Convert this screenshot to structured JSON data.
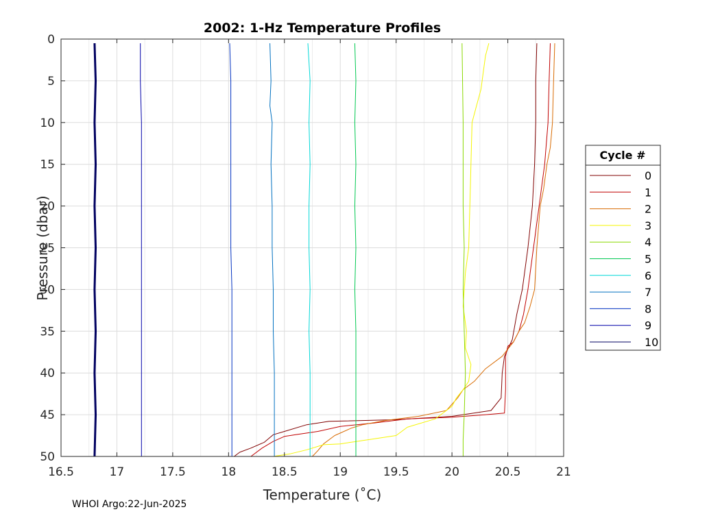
{
  "footer": "WHOI Argo:22-Jun-2025",
  "chart_data": {
    "type": "line",
    "title": "2002: 1-Hz Temperature Profiles",
    "xlabel": "Temperature (˚C)",
    "ylabel": "Pressure (dbar)",
    "xlim": [
      16.5,
      21
    ],
    "ylim": [
      0,
      50
    ],
    "y_reversed": true,
    "grid": true,
    "x_ticks": [
      16.5,
      17,
      17.5,
      18,
      18.5,
      19,
      19.5,
      20,
      20.5,
      21
    ],
    "x_tick_labels": [
      "16.5",
      "17",
      "17.5",
      "18",
      "18.5",
      "19",
      "19.5",
      "20",
      "20.5",
      "21"
    ],
    "y_ticks": [
      0,
      5,
      10,
      15,
      20,
      25,
      30,
      35,
      40,
      45,
      50
    ],
    "y_tick_labels": [
      "0",
      "5",
      "10",
      "15",
      "20",
      "25",
      "30",
      "35",
      "40",
      "45",
      "50"
    ],
    "legend": {
      "title": "Cycle #",
      "placement": "right"
    },
    "series": [
      {
        "name": "0",
        "color": "#800000",
        "points": [
          [
            20.76,
            0.5
          ],
          [
            20.75,
            5
          ],
          [
            20.75,
            10
          ],
          [
            20.74,
            15
          ],
          [
            20.72,
            20
          ],
          [
            20.68,
            25
          ],
          [
            20.63,
            30
          ],
          [
            20.58,
            33
          ],
          [
            20.54,
            36
          ],
          [
            20.47,
            38
          ],
          [
            20.45,
            40
          ],
          [
            20.44,
            43
          ],
          [
            20.35,
            44.5
          ],
          [
            20.0,
            45.2
          ],
          [
            19.5,
            45.6
          ],
          [
            18.9,
            45.8
          ],
          [
            18.7,
            46.2
          ],
          [
            18.5,
            47.0
          ],
          [
            18.4,
            47.4
          ],
          [
            18.32,
            48.3
          ],
          [
            18.2,
            49.0
          ],
          [
            18.1,
            49.5
          ],
          [
            18.05,
            50
          ]
        ]
      },
      {
        "name": "1",
        "color": "#c00000",
        "points": [
          [
            20.88,
            0.5
          ],
          [
            20.87,
            5
          ],
          [
            20.86,
            10
          ],
          [
            20.83,
            15
          ],
          [
            20.78,
            20
          ],
          [
            20.73,
            25
          ],
          [
            20.68,
            30
          ],
          [
            20.64,
            33
          ],
          [
            20.6,
            35
          ],
          [
            20.55,
            36.3
          ],
          [
            20.5,
            36.8
          ],
          [
            20.48,
            38
          ],
          [
            20.48,
            42
          ],
          [
            20.47,
            44.8
          ],
          [
            20.3,
            45
          ],
          [
            20.0,
            45.3
          ],
          [
            19.6,
            45.5
          ],
          [
            19.3,
            46
          ],
          [
            19.0,
            46.4
          ],
          [
            18.8,
            47
          ],
          [
            18.6,
            47.4
          ],
          [
            18.5,
            47.6
          ],
          [
            18.4,
            48.2
          ],
          [
            18.3,
            49
          ],
          [
            18.2,
            50
          ]
        ]
      },
      {
        "name": "2",
        "color": "#d86a00",
        "points": [
          [
            20.92,
            0.5
          ],
          [
            20.91,
            5
          ],
          [
            20.9,
            10
          ],
          [
            20.88,
            13
          ],
          [
            20.85,
            15
          ],
          [
            20.82,
            18
          ],
          [
            20.79,
            20
          ],
          [
            20.76,
            25
          ],
          [
            20.74,
            30
          ],
          [
            20.7,
            32
          ],
          [
            20.65,
            34
          ],
          [
            20.6,
            35
          ],
          [
            20.55,
            36.3
          ],
          [
            20.45,
            38
          ],
          [
            20.3,
            39.5
          ],
          [
            20.2,
            41
          ],
          [
            20.1,
            42
          ],
          [
            20.05,
            43
          ],
          [
            19.95,
            44.5
          ],
          [
            19.7,
            45.2
          ],
          [
            19.4,
            45.7
          ],
          [
            19.2,
            46.2
          ],
          [
            19.1,
            46.6
          ],
          [
            18.95,
            47.5
          ],
          [
            18.85,
            48.5
          ],
          [
            18.8,
            49.3
          ],
          [
            18.75,
            50
          ]
        ]
      },
      {
        "name": "3",
        "color": "#f5f500",
        "points": [
          [
            20.33,
            0.5
          ],
          [
            20.3,
            2
          ],
          [
            20.28,
            4
          ],
          [
            20.26,
            6
          ],
          [
            20.22,
            8
          ],
          [
            20.18,
            10
          ],
          [
            20.17,
            15
          ],
          [
            20.16,
            20
          ],
          [
            20.15,
            25
          ],
          [
            20.12,
            28
          ],
          [
            20.1,
            32
          ],
          [
            20.13,
            35
          ],
          [
            20.12,
            37
          ],
          [
            20.17,
            39
          ],
          [
            20.15,
            41
          ],
          [
            20.1,
            42
          ],
          [
            20.04,
            43
          ],
          [
            20.0,
            44
          ],
          [
            19.85,
            45.5
          ],
          [
            19.6,
            46.5
          ],
          [
            19.5,
            47.5
          ],
          [
            19.25,
            48
          ],
          [
            19.0,
            48.5
          ],
          [
            18.85,
            48.6
          ],
          [
            18.7,
            49.2
          ],
          [
            18.55,
            49.7
          ],
          [
            18.4,
            50
          ]
        ]
      },
      {
        "name": "4",
        "color": "#8ad800",
        "points": [
          [
            20.09,
            0.5
          ],
          [
            20.1,
            10
          ],
          [
            20.1,
            20
          ],
          [
            20.11,
            25
          ],
          [
            20.1,
            30
          ],
          [
            20.11,
            35
          ],
          [
            20.12,
            40
          ],
          [
            20.11,
            45
          ],
          [
            20.1,
            48
          ],
          [
            20.1,
            50
          ]
        ]
      },
      {
        "name": "5",
        "color": "#00c850",
        "points": [
          [
            19.13,
            0.5
          ],
          [
            19.14,
            5
          ],
          [
            19.13,
            10
          ],
          [
            19.14,
            15
          ],
          [
            19.13,
            20
          ],
          [
            19.14,
            25
          ],
          [
            19.13,
            30
          ],
          [
            19.14,
            35
          ],
          [
            19.14,
            40
          ],
          [
            19.14,
            45
          ],
          [
            19.14,
            50
          ]
        ]
      },
      {
        "name": "6",
        "color": "#00d8d8",
        "points": [
          [
            18.71,
            0.5
          ],
          [
            18.73,
            5
          ],
          [
            18.72,
            10
          ],
          [
            18.73,
            15
          ],
          [
            18.72,
            20
          ],
          [
            18.72,
            25
          ],
          [
            18.73,
            30
          ],
          [
            18.72,
            35
          ],
          [
            18.73,
            40
          ],
          [
            18.73,
            45
          ],
          [
            18.73,
            50
          ]
        ]
      },
      {
        "name": "7",
        "color": "#0070c0",
        "points": [
          [
            18.37,
            0.5
          ],
          [
            18.38,
            5
          ],
          [
            18.37,
            8
          ],
          [
            18.39,
            10
          ],
          [
            18.38,
            15
          ],
          [
            18.39,
            20
          ],
          [
            18.39,
            25
          ],
          [
            18.4,
            30
          ],
          [
            18.4,
            35
          ],
          [
            18.41,
            40
          ],
          [
            18.41,
            45
          ],
          [
            18.41,
            50
          ]
        ]
      },
      {
        "name": "8",
        "color": "#0030c0",
        "points": [
          [
            18.01,
            0.5
          ],
          [
            18.02,
            5
          ],
          [
            18.02,
            10
          ],
          [
            18.02,
            15
          ],
          [
            18.02,
            20
          ],
          [
            18.02,
            25
          ],
          [
            18.03,
            30
          ],
          [
            18.03,
            35
          ],
          [
            18.03,
            40
          ],
          [
            18.03,
            45
          ],
          [
            18.03,
            50
          ]
        ]
      },
      {
        "name": "9",
        "color": "#0000a8",
        "points": [
          [
            17.21,
            0.5
          ],
          [
            17.21,
            5
          ],
          [
            17.22,
            10
          ],
          [
            17.22,
            15
          ],
          [
            17.22,
            20
          ],
          [
            17.22,
            25
          ],
          [
            17.22,
            30
          ],
          [
            17.22,
            35
          ],
          [
            17.22,
            40
          ],
          [
            17.22,
            45
          ],
          [
            17.22,
            50
          ]
        ]
      },
      {
        "name": "10",
        "color": "#000060",
        "points": [
          [
            16.8,
            0.5
          ],
          [
            16.81,
            5
          ],
          [
            16.8,
            10
          ],
          [
            16.81,
            15
          ],
          [
            16.8,
            20
          ],
          [
            16.81,
            25
          ],
          [
            16.8,
            30
          ],
          [
            16.81,
            35
          ],
          [
            16.8,
            40
          ],
          [
            16.81,
            45
          ],
          [
            16.8,
            50
          ]
        ]
      }
    ]
  }
}
